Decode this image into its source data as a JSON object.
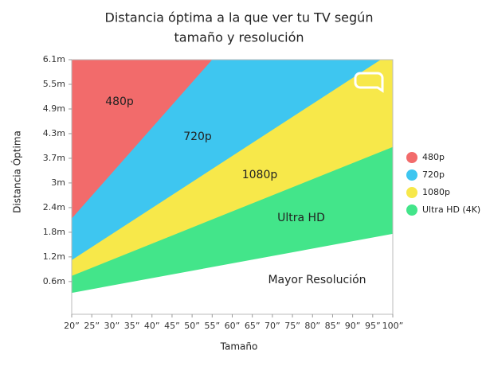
{
  "chart_data": {
    "type": "area",
    "title": [
      "Distancia óptima a la que ver tu TV según",
      "tamaño y resolución"
    ],
    "x_label": "Tamaño",
    "y_label": "Distancia Óptima",
    "xlim": [
      20,
      100
    ],
    "ylim": [
      -0.2,
      6.1
    ],
    "xticks": [
      {
        "value": 20,
        "label": "20”"
      },
      {
        "value": 25,
        "label": "25”"
      },
      {
        "value": 30,
        "label": "30”"
      },
      {
        "value": 35,
        "label": "35”"
      },
      {
        "value": 40,
        "label": "40”"
      },
      {
        "value": 45,
        "label": "45”"
      },
      {
        "value": 50,
        "label": "50”"
      },
      {
        "value": 55,
        "label": "55”"
      },
      {
        "value": 60,
        "label": "60”"
      },
      {
        "value": 65,
        "label": "65”"
      },
      {
        "value": 70,
        "label": "70”"
      },
      {
        "value": 75,
        "label": "75”"
      },
      {
        "value": 80,
        "label": "80”"
      },
      {
        "value": 85,
        "label": "85”"
      },
      {
        "value": 90,
        "label": "90”"
      },
      {
        "value": 95,
        "label": "95”"
      },
      {
        "value": 100,
        "label": "100”"
      }
    ],
    "yticks": [
      {
        "value": 0.61,
        "label": "0.6m"
      },
      {
        "value": 1.22,
        "label": "1.2m"
      },
      {
        "value": 1.83,
        "label": "1.8m"
      },
      {
        "value": 2.44,
        "label": "2.4m"
      },
      {
        "value": 3.05,
        "label": "3m"
      },
      {
        "value": 3.66,
        "label": "3.7m"
      },
      {
        "value": 4.27,
        "label": "4.3m"
      },
      {
        "value": 4.88,
        "label": "4.9m"
      },
      {
        "value": 5.49,
        "label": "5.5m"
      },
      {
        "value": 6.1,
        "label": "6.1m"
      }
    ],
    "series": [
      {
        "name": "480p",
        "color": "#f26b6b",
        "x": [
          20,
          55
        ],
        "values": [
          2.17,
          6.1
        ]
      },
      {
        "name": "720p",
        "color": "#3ec6f0",
        "x": [
          20,
          97
        ],
        "values": [
          1.14,
          6.1
        ]
      },
      {
        "name": "1080p",
        "color": "#f7e84a",
        "x": [
          20,
          100
        ],
        "values": [
          0.75,
          3.94
        ]
      },
      {
        "name": "Ultra HD (4K)",
        "color": "#43e58a",
        "x": [
          20,
          100
        ],
        "values": [
          0.33,
          1.79
        ]
      }
    ],
    "annotations": [
      "480p",
      "720p",
      "1080p",
      "Ultra HD",
      "Mayor Resolución"
    ]
  }
}
